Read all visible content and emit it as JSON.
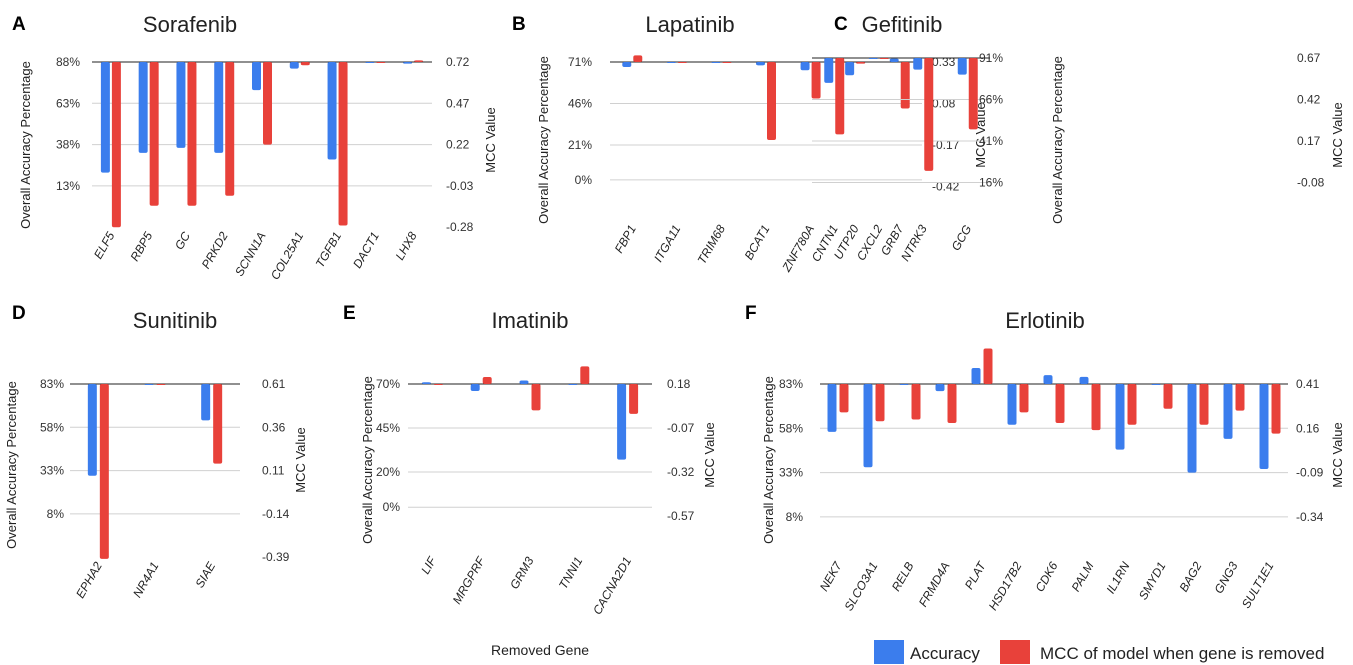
{
  "legend": {
    "accuracy": "Accuracy",
    "mcc": "MCC of model when gene is removed",
    "colors": {
      "accuracy": "#3b7ded",
      "mcc": "#e8413a"
    }
  },
  "x_axis_label": "Removed Gene",
  "chart_data": [
    {
      "panel": "A",
      "type": "bar",
      "title": "Sorafenib",
      "ylabel": "Overall Accuracy Percentage",
      "y2label": "MCC Value",
      "left_ticks": [
        "88%",
        "63%",
        "38%",
        "13%"
      ],
      "right_ticks": [
        "0.72",
        "0.47",
        "0.22",
        "-0.03",
        "-0.28"
      ],
      "categories": [
        "ELF5",
        "RBP5",
        "GC",
        "PRKD2",
        "SCNN1A",
        "COL25A1",
        "TGFB1",
        "DACT1",
        "LHX8"
      ],
      "series": [
        {
          "name": "Accuracy",
          "axis": "left",
          "values": [
            21,
            33,
            36,
            33,
            71,
            84,
            29,
            88,
            87
          ]
        },
        {
          "name": "MCC of model when gene is removed",
          "axis": "right",
          "values": [
            -0.28,
            -0.15,
            -0.15,
            -0.09,
            0.22,
            0.7,
            -0.27,
            0.72,
            0.73
          ]
        }
      ]
    },
    {
      "panel": "B",
      "type": "bar",
      "title": "Lapatinib",
      "ylabel": "Overall Accuracy Percentage",
      "y2label": "MCC Value",
      "left_ticks": [
        "71%",
        "46%",
        "21%",
        "0%"
      ],
      "right_ticks": [
        "0.33",
        "0.08",
        "-0.17",
        "-0.42"
      ],
      "categories": [
        "FBP1",
        "ITGA11",
        "TRIM68",
        "BCAT1",
        "ZNF780A",
        "UTP20",
        "GRB7"
      ],
      "series": [
        {
          "name": "Accuracy",
          "axis": "left",
          "values": [
            68,
            71,
            71,
            69,
            66,
            63,
            73
          ]
        },
        {
          "name": "MCC of model when gene is removed",
          "axis": "right",
          "values": [
            0.37,
            0.33,
            0.33,
            -0.14,
            0.11,
            0.32,
            0.05
          ]
        }
      ]
    },
    {
      "panel": "C",
      "type": "bar",
      "title": "Gefitinib",
      "ylabel": "Overall Accuracy Percentage",
      "y2label": "MCC Value",
      "left_ticks": [
        "91%",
        "66%",
        "41%",
        "16%"
      ],
      "right_ticks": [
        "0.67",
        "0.42",
        "0.17",
        "-0.08"
      ],
      "categories": [
        "CNTN1",
        "CXCL2",
        "NTRK3",
        "GCG"
      ],
      "series": [
        {
          "name": "Accuracy",
          "axis": "left",
          "values": [
            76,
            91,
            84,
            81
          ]
        },
        {
          "name": "MCC of model when gene is removed",
          "axis": "right",
          "values": [
            0.21,
            0.67,
            -0.01,
            0.24
          ]
        }
      ]
    },
    {
      "panel": "D",
      "type": "bar",
      "title": "Sunitinib",
      "ylabel": "Overall Accuracy Percentage",
      "y2label": "MCC Value",
      "left_ticks": [
        "83%",
        "58%",
        "33%",
        "8%"
      ],
      "right_ticks": [
        "0.61",
        "0.36",
        "0.11",
        "-0.14",
        "-0.39"
      ],
      "categories": [
        "EPHA2",
        "NR4A1",
        "SIAE"
      ],
      "series": [
        {
          "name": "Accuracy",
          "axis": "left",
          "values": [
            30,
            83,
            62
          ]
        },
        {
          "name": "MCC of model when gene is removed",
          "axis": "right",
          "values": [
            -0.4,
            0.61,
            0.15
          ]
        }
      ]
    },
    {
      "panel": "E",
      "type": "bar",
      "title": "Imatinib",
      "ylabel": "Overall Accuracy Percentage",
      "y2label": "MCC Value",
      "left_ticks": [
        "70%",
        "45%",
        "20%",
        "0%"
      ],
      "right_ticks": [
        "0.18",
        "-0.07",
        "-0.32",
        "-0.57"
      ],
      "categories": [
        "LIF",
        "MRGPRF",
        "GRM3",
        "TNNI1",
        "CACNA2D1"
      ],
      "series": [
        {
          "name": "Accuracy",
          "axis": "left",
          "values": [
            71,
            66,
            72,
            70,
            27
          ]
        },
        {
          "name": "MCC of model when gene is removed",
          "axis": "right",
          "values": [
            0.18,
            0.22,
            0.03,
            0.28,
            0.01
          ]
        }
      ]
    },
    {
      "panel": "F",
      "type": "bar",
      "title": "Erlotinib",
      "ylabel": "Overall Accuracy Percentage",
      "y2label": "MCC Value",
      "left_ticks": [
        "83%",
        "58%",
        "33%",
        "8%"
      ],
      "right_ticks": [
        "0.41",
        "0.16",
        "-0.09",
        "-0.34"
      ],
      "categories": [
        "NEK7",
        "SLCO3A1",
        "RELB",
        "FRMD4A",
        "PLAT",
        "HSD17B2",
        "CDK6",
        "PALM",
        "IL1RN",
        "SMYD1",
        "BAG2",
        "GNG3",
        "SULT1E1"
      ],
      "series": [
        {
          "name": "Accuracy",
          "axis": "left",
          "values": [
            56,
            36,
            83,
            79,
            92,
            60,
            88,
            87,
            46,
            83,
            33,
            52,
            35
          ]
        },
        {
          "name": "MCC of model when gene is removed",
          "axis": "right",
          "values": [
            0.25,
            0.2,
            0.21,
            0.19,
            0.61,
            0.25,
            0.19,
            0.15,
            0.18,
            0.27,
            0.18,
            0.26,
            0.13
          ]
        }
      ]
    }
  ]
}
